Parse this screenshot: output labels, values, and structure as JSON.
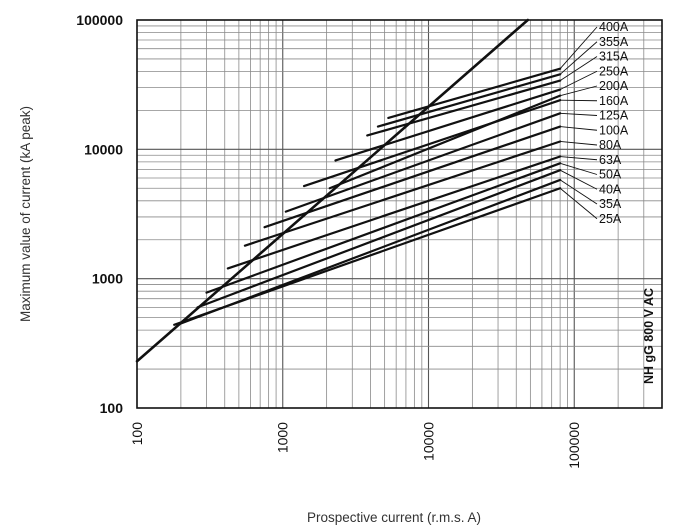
{
  "chart_data": {
    "type": "line",
    "xscale": "log",
    "yscale": "log",
    "xlim": [
      100,
      400000
    ],
    "ylim": [
      100,
      100000
    ],
    "xlabel": "Prospective current (r.m.s. A)",
    "ylabel": "Maximum value of current (kA peak)",
    "x_ticks": [
      "100",
      "1000",
      "10000",
      "100000"
    ],
    "y_ticks": [
      "100",
      "1000",
      "10000",
      "100000"
    ],
    "grid": true,
    "side_note": "NH gG 800 V AC",
    "envelope": {
      "x": [
        100,
        48000
      ],
      "y": [
        230,
        100000
      ]
    },
    "series": [
      {
        "name": "400A",
        "x": [
          5300,
          80000
        ],
        "y": [
          17500,
          42000
        ]
      },
      {
        "name": "355A",
        "x": [
          4500,
          80000
        ],
        "y": [
          15000,
          38000
        ]
      },
      {
        "name": "315A",
        "x": [
          3800,
          80000
        ],
        "y": [
          12800,
          34000
        ]
      },
      {
        "name": "250A",
        "x": [
          2300,
          80000
        ],
        "y": [
          8200,
          29000
        ]
      },
      {
        "name": "200A",
        "x": [
          2100,
          80000
        ],
        "y": [
          5000,
          26000
        ]
      },
      {
        "name": "160A",
        "x": [
          1400,
          80000
        ],
        "y": [
          5200,
          24000
        ]
      },
      {
        "name": "125A",
        "x": [
          1050,
          80000
        ],
        "y": [
          3300,
          19000
        ]
      },
      {
        "name": "100A",
        "x": [
          750,
          80000
        ],
        "y": [
          2500,
          15000
        ]
      },
      {
        "name": "80A",
        "x": [
          550,
          80000
        ],
        "y": [
          1800,
          11500
        ]
      },
      {
        "name": "63A",
        "x": [
          420,
          80000
        ],
        "y": [
          1200,
          8800
        ]
      },
      {
        "name": "50A",
        "x": [
          300,
          80000
        ],
        "y": [
          780,
          7800
        ]
      },
      {
        "name": "40A",
        "x": [
          260,
          80000
        ],
        "y": [
          600,
          6900
        ]
      },
      {
        "name": "35A",
        "x": [
          200,
          80000
        ],
        "y": [
          450,
          5800
        ]
      },
      {
        "name": "25A",
        "x": [
          180,
          80000
        ],
        "y": [
          440,
          5000
        ]
      }
    ]
  }
}
